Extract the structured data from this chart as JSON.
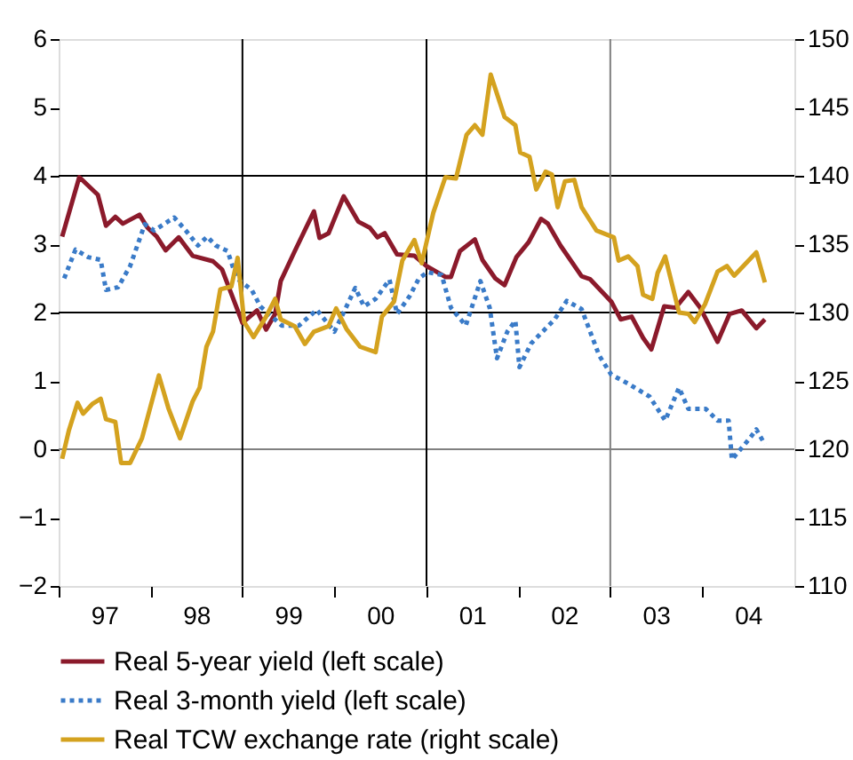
{
  "chart_data": {
    "type": "line",
    "xlim": [
      "1997-01-01",
      "2005-01-01"
    ],
    "xticks": [
      {
        "value": "1997-01-01",
        "label": null
      },
      {
        "value": "1997-07-01",
        "label": "97"
      },
      {
        "value": "1998-01-01",
        "label": null
      },
      {
        "value": "1998-07-01",
        "label": "98"
      },
      {
        "value": "1999-01-01",
        "label": null
      },
      {
        "value": "1999-07-01",
        "label": "99"
      },
      {
        "value": "2000-01-01",
        "label": null
      },
      {
        "value": "2000-07-01",
        "label": "00"
      },
      {
        "value": "2001-01-01",
        "label": null
      },
      {
        "value": "2001-07-01",
        "label": "01"
      },
      {
        "value": "2002-01-01",
        "label": null
      },
      {
        "value": "2002-07-01",
        "label": "02"
      },
      {
        "value": "2003-01-01",
        "label": null
      },
      {
        "value": "2003-07-01",
        "label": "03"
      },
      {
        "value": "2004-01-01",
        "label": null
      },
      {
        "value": "2004-07-01",
        "label": "04"
      }
    ],
    "ylim": [
      -2,
      6
    ],
    "yticks": [
      -2,
      -1,
      0,
      1,
      2,
      3,
      4,
      5,
      6
    ],
    "y2lim": [
      110,
      150
    ],
    "y2ticks": [
      110,
      115,
      120,
      125,
      130,
      135,
      140,
      145,
      150
    ],
    "grid": false,
    "legend": "bottom",
    "ref_lines": [
      {
        "axis": "y",
        "value": 0,
        "label": null,
        "color": "#808080"
      },
      {
        "axis": "y",
        "value": 2,
        "label": null,
        "color": "#000000"
      },
      {
        "axis": "y",
        "value": 4,
        "label": null,
        "color": "#000000"
      },
      {
        "axis": "x",
        "value": "1999-01-01",
        "label": null,
        "color": "#000000"
      },
      {
        "axis": "x",
        "value": "2001-01-01",
        "label": null,
        "color": "#000000"
      },
      {
        "axis": "x",
        "value": "2003-01-01",
        "label": null,
        "color": "#808080"
      }
    ],
    "series": [
      {
        "name": "Real 5-year yield (left scale)",
        "color": "#8b1a2b",
        "line_style": "solid",
        "x": [
          "1997-01-15",
          "1997-03-24",
          "1997-06-06",
          "1997-07-08",
          "1997-08-14",
          "1997-09-13",
          "1997-11-18",
          "1997-12-20",
          "1998-01-26",
          "1998-03-02",
          "1998-04-23",
          "1998-06-17",
          "1998-09-06",
          "1998-10-12",
          "1999-01-01",
          "1999-02-28",
          "1999-04-05",
          "1999-05-11",
          "1999-06-02",
          "1999-07-28",
          "1999-10-12",
          "1999-11-03",
          "1999-12-09",
          "2000-02-07",
          "2000-04-05",
          "2000-05-21",
          "2000-06-20",
          "2000-07-19",
          "2000-09-06",
          "2000-11-14",
          "2001-01-01",
          "2001-03-17",
          "2001-04-08",
          "2001-05-14",
          "2001-07-12",
          "2001-08-11",
          "2001-10-01",
          "2001-11-07",
          "2001-12-24",
          "2002-02-11",
          "2002-04-01",
          "2002-04-28",
          "2002-06-17",
          "2002-09-09",
          "2002-10-12",
          "2003-01-05",
          "2003-02-11",
          "2003-03-27",
          "2003-05-11",
          "2003-06-13",
          "2003-08-03",
          "2003-09-17",
          "2003-11-07",
          "2003-12-24",
          "2004-03-02",
          "2004-04-19",
          "2004-06-06",
          "2004-08-03",
          "2004-09-06"
        ],
        "values": [
          3.11,
          3.98,
          3.72,
          3.27,
          3.4,
          3.3,
          3.43,
          3.24,
          3.11,
          2.91,
          3.1,
          2.83,
          2.75,
          2.63,
          1.85,
          2.03,
          1.75,
          1.98,
          2.46,
          2.9,
          3.48,
          3.09,
          3.16,
          3.7,
          3.33,
          3.24,
          3.1,
          3.16,
          2.85,
          2.83,
          2.68,
          2.52,
          2.52,
          2.9,
          3.07,
          2.77,
          2.5,
          2.4,
          2.81,
          3.03,
          3.37,
          3.3,
          2.98,
          2.53,
          2.49,
          2.16,
          1.9,
          1.94,
          1.63,
          1.46,
          2.09,
          2.07,
          2.3,
          2.07,
          1.57,
          1.98,
          2.03,
          1.77,
          1.9
        ]
      },
      {
        "name": "Real 3-month yield (left scale)",
        "color": "#3a7bc8",
        "line_style": "dotted",
        "x": [
          "1997-01-23",
          "1997-03-09",
          "1997-04-28",
          "1997-06-17",
          "1997-07-08",
          "1997-08-25",
          "1997-10-12",
          "1997-12-09",
          "1998-01-15",
          "1998-04-05",
          "1998-05-21",
          "1998-07-08",
          "1998-08-14",
          "1998-09-17",
          "1998-11-03",
          "1998-12-09",
          "1999-02-07",
          "1999-03-13",
          "1999-06-06",
          "1999-08-14",
          "1999-10-23",
          "2000-01-01",
          "2000-02-07",
          "2000-03-24",
          "2000-04-28",
          "2000-06-13",
          "2000-08-07",
          "2000-09-06",
          "2000-10-26",
          "2000-12-02",
          "2001-01-05",
          "2001-03-02",
          "2001-04-08",
          "2001-06-06",
          "2001-08-03",
          "2001-09-09",
          "2001-10-08",
          "2001-11-18",
          "2001-12-20",
          "2002-01-05",
          "2002-02-21",
          "2002-05-25",
          "2002-07-12",
          "2002-09-09",
          "2002-11-18",
          "2003-01-05",
          "2003-03-13",
          "2003-06-06",
          "2003-08-07",
          "2003-10-01",
          "2003-11-07",
          "2004-01-15",
          "2004-03-02",
          "2004-04-15",
          "2004-04-28",
          "2004-07-08",
          "2004-08-03",
          "2004-09-06"
        ],
        "values": [
          2.5,
          2.92,
          2.81,
          2.77,
          2.33,
          2.37,
          2.68,
          3.29,
          3.2,
          3.39,
          3.2,
          2.98,
          3.11,
          2.98,
          2.9,
          2.5,
          2.33,
          2.09,
          1.81,
          1.81,
          2.04,
          1.72,
          2.0,
          2.36,
          2.09,
          2.2,
          2.48,
          1.98,
          2.24,
          2.5,
          2.59,
          2.55,
          2.07,
          1.81,
          2.46,
          2.07,
          1.33,
          1.72,
          1.88,
          1.2,
          1.55,
          1.9,
          2.17,
          2.05,
          1.37,
          1.09,
          0.96,
          0.77,
          0.42,
          0.9,
          0.59,
          0.59,
          0.42,
          0.42,
          -0.15,
          0.16,
          0.29,
          0.07
        ]
      },
      {
        "name": "Real TCW exchange rate (right scale)",
        "color": "#d4a21f",
        "line_style": "solid",
        "axis": "y2",
        "x": [
          "1997-01-15",
          "1997-02-11",
          "1997-03-17",
          "1997-04-08",
          "1997-05-14",
          "1997-06-17",
          "1997-07-08",
          "1997-08-14",
          "1997-09-06",
          "1997-10-12",
          "1997-11-28",
          "1998-02-03",
          "1998-03-13",
          "1998-04-28",
          "1998-06-17",
          "1998-07-15",
          "1998-08-11",
          "1998-09-06",
          "1998-10-05",
          "1998-11-18",
          "1998-12-13",
          "1999-01-08",
          "1999-02-14",
          "1999-04-05",
          "1999-05-11",
          "1999-06-02",
          "1999-07-28",
          "1999-09-06",
          "1999-10-12",
          "1999-12-09",
          "2000-01-08",
          "2000-02-18",
          "2000-04-12",
          "2000-06-13",
          "2000-07-08",
          "2000-08-25",
          "2000-09-27",
          "2000-11-14",
          "2000-12-13",
          "2001-01-28",
          "2001-03-17",
          "2001-04-28",
          "2001-06-09",
          "2001-07-12",
          "2001-08-11",
          "2001-09-13",
          "2001-11-07",
          "2001-12-20",
          "2002-01-08",
          "2002-02-14",
          "2002-03-13",
          "2002-04-19",
          "2002-05-14",
          "2002-06-06",
          "2002-07-05",
          "2002-08-11",
          "2002-09-09",
          "2002-11-07",
          "2003-01-15",
          "2003-02-03",
          "2003-03-13",
          "2003-04-19",
          "2003-05-11",
          "2003-06-17",
          "2003-07-08",
          "2003-08-07",
          "2003-10-01",
          "2003-11-07",
          "2003-12-02",
          "2004-01-12",
          "2004-03-02",
          "2004-04-08",
          "2004-05-07",
          "2004-08-03",
          "2004-09-06"
        ],
        "values": [
          119.3,
          121.4,
          123.4,
          122.6,
          123.3,
          123.7,
          122.2,
          122.0,
          119.0,
          119.0,
          120.8,
          125.4,
          123.0,
          120.8,
          123.5,
          124.5,
          127.5,
          128.6,
          131.7,
          131.9,
          134.0,
          129.3,
          128.2,
          129.7,
          131.0,
          129.5,
          129.0,
          127.7,
          128.6,
          129.0,
          130.3,
          128.8,
          127.5,
          127.1,
          129.7,
          130.8,
          133.8,
          135.3,
          133.6,
          137.3,
          139.9,
          139.8,
          143.0,
          143.7,
          143.0,
          147.4,
          144.3,
          143.7,
          141.7,
          141.4,
          139.0,
          140.3,
          140.1,
          137.7,
          139.6,
          139.7,
          137.7,
          136.0,
          135.5,
          133.8,
          134.1,
          133.4,
          131.3,
          131.0,
          132.9,
          134.1,
          130.0,
          129.9,
          129.3,
          130.6,
          133.0,
          133.4,
          132.7,
          134.4,
          132.2
        ]
      }
    ]
  }
}
